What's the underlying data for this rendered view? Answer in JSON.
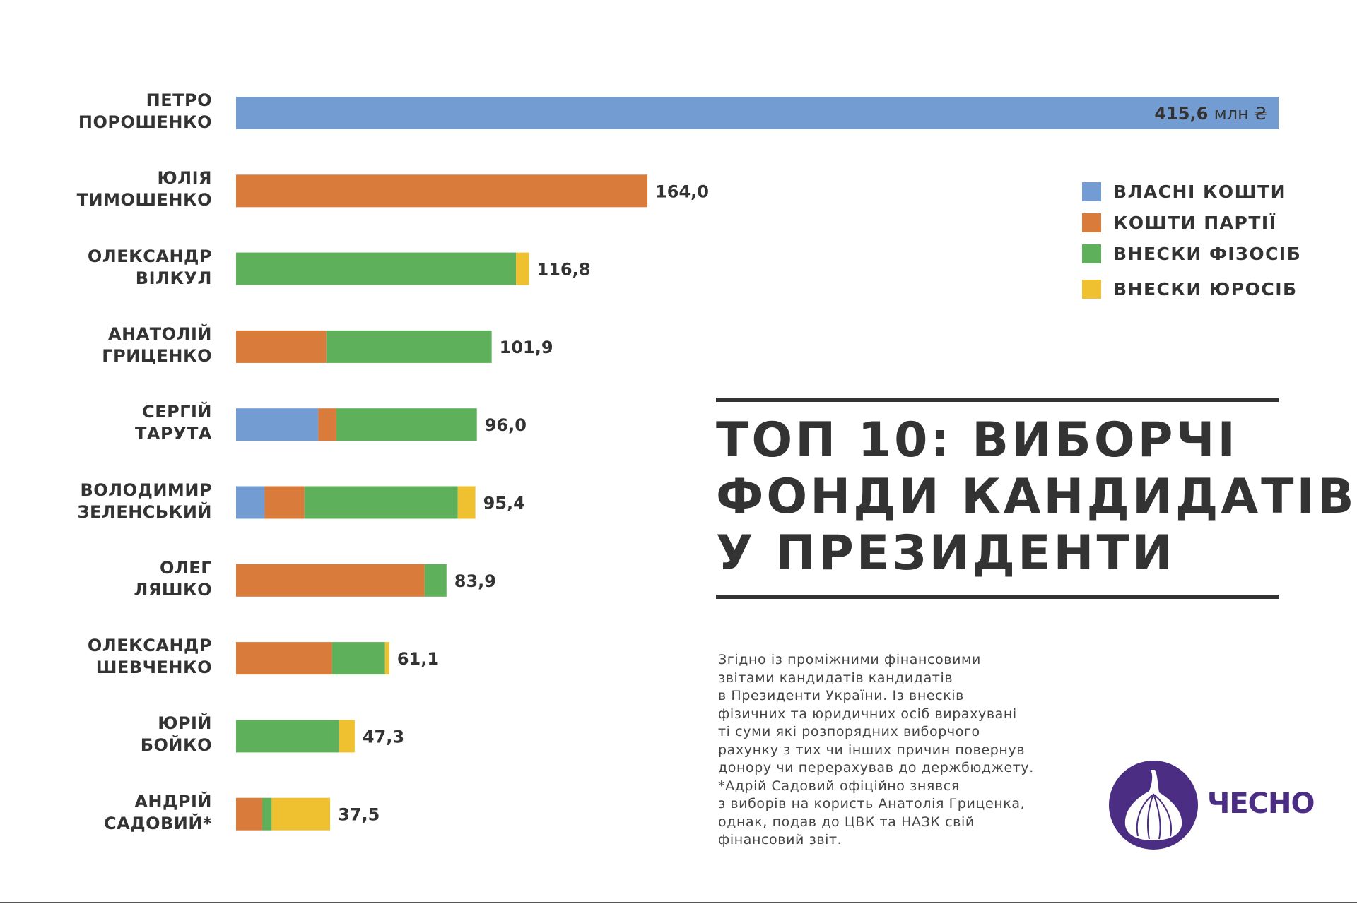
{
  "chart_data": {
    "type": "bar",
    "orientation": "horizontal",
    "stacked": true,
    "title": "ТОП 10: ВИБОРЧІ ФОНДИ КАНДИДАТІВ У ПРЕЗИДЕНТИ",
    "title_lines": [
      "ТОП 10: ВИБОРЧІ",
      "ФОНДИ КАНДИДАТІВ",
      "У ПРЕЗИДЕНТИ"
    ],
    "unit": "млн ₴",
    "categories": [
      [
        "ПЕТРО",
        "ПОРОШЕНКО"
      ],
      [
        "ЮЛІЯ",
        "ТИМОШЕНКО"
      ],
      [
        "ОЛЕКСАНДР",
        "ВІЛКУЛ"
      ],
      [
        "АНАТОЛІЙ",
        "ГРИЦЕНКО"
      ],
      [
        "СЕРГІЙ",
        "ТАРУТА"
      ],
      [
        "ВОЛОДИМИР",
        "ЗЕЛЕНСЬКИЙ"
      ],
      [
        "ОЛЕГ",
        "ЛЯШКО"
      ],
      [
        "ОЛЕКСАНДР",
        "ШЕВЧЕНКО"
      ],
      [
        "ЮРІЙ",
        "БОЙКО"
      ],
      [
        "АНДРІЙ",
        "САДОВИЙ*"
      ]
    ],
    "totals": [
      "415,6",
      "164,0",
      "116,8",
      "101,9",
      "96,0",
      "95,4",
      "83,9",
      "61,1",
      "47,3",
      "37,5"
    ],
    "series": [
      {
        "name": "ВЛАСНІ КОШТИ",
        "color": "#739dd2",
        "values": [
          415.6,
          0,
          0,
          0,
          32.8,
          11.4,
          0,
          0,
          0,
          0
        ]
      },
      {
        "name": "КОШТИ ПАРТІЇ",
        "color": "#d97b3a",
        "values": [
          0,
          164.0,
          0,
          36.0,
          7.2,
          15.9,
          75.2,
          38.3,
          0,
          10.4
        ]
      },
      {
        "name": "ВНЕСКИ ФІЗОСІБ",
        "color": "#5fb05a",
        "values": [
          0,
          0,
          111.6,
          65.9,
          56.0,
          61.1,
          8.7,
          21.1,
          41.1,
          3.8
        ]
      },
      {
        "name": "ВНЕСКИ ЮРОСІБ",
        "color": "#efc131",
        "values": [
          0,
          0,
          5.2,
          0,
          0,
          7.0,
          0,
          1.7,
          6.2,
          23.3
        ]
      }
    ],
    "xlim": [
      0,
      415.6
    ],
    "legend": "top-right",
    "grid": false
  },
  "note_lines": [
    "Згідно із проміжними фінансовими",
    "звітами кандидатів кандидатів",
    "в Президенти України. Із внесків",
    "фізичних та юридичних осіб вирахувані",
    "ті суми які розпорядних виборчого",
    "рахунку з тих чи інших причин повернув",
    "донору чи перерахував до держбюджету.",
    "*Адрій Садовий офіційно знявся",
    "з виборів на користь Анатолія Гриценка,",
    "однак, подав до ЦВК та НАЗК свій",
    "фінансовий звіт."
  ],
  "logo": {
    "text": "ЧЕСНО",
    "color": "#4b2e83"
  }
}
